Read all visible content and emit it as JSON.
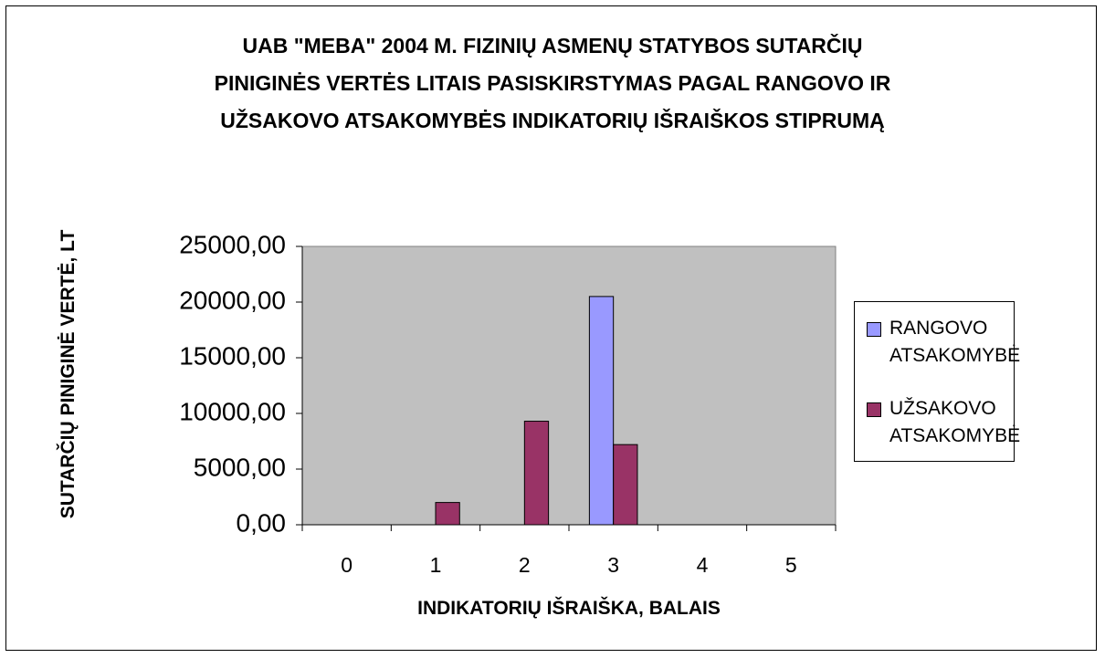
{
  "chart_data": {
    "type": "bar",
    "title": "UAB \"MEBA\" 2004 M. FIZINIŲ ASMENŲ STATYBOS SUTARČIŲ PINIGINĖS VERTĖS LITAIS PASISKIRSTYMAS PAGAL RANGOVO IR UŽSAKOVO ATSAKOMYBĖS INDIKATORIŲ IŠRAIŠKOS STIPRUMĄ",
    "x_label": "INDIKATORIŲ IŠRAIŠKA, BALAIS",
    "y_label": "SUTARČIŲ PINIGINĖ VERTĖ, LT",
    "categories": [
      "0",
      "1",
      "2",
      "3",
      "4",
      "5"
    ],
    "series": [
      {
        "name": "RANGOVO ATSAKOMYBĖ",
        "color": "#9999ff",
        "values": [
          0,
          0,
          0,
          20500,
          0,
          0
        ]
      },
      {
        "name": "UŽSAKOVO ATSAKOMYBĖ",
        "color": "#993366",
        "values": [
          0,
          2000,
          9300,
          7200,
          0,
          0
        ]
      }
    ],
    "ylim": [
      0,
      25000
    ],
    "yticks": [
      {
        "value": 0,
        "label": "0,00"
      },
      {
        "value": 5000,
        "label": "5000,00"
      },
      {
        "value": 10000,
        "label": "10000,00"
      },
      {
        "value": 15000,
        "label": "15000,00"
      },
      {
        "value": 20000,
        "label": "20000,00"
      },
      {
        "value": 25000,
        "label": "25000,00"
      }
    ],
    "grid": false,
    "legend": "right"
  }
}
